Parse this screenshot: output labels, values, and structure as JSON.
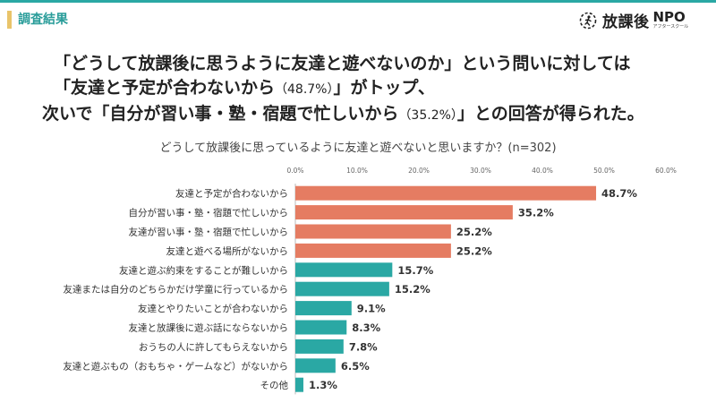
{
  "header": {
    "section_label": "調査結果",
    "logo_text": "放課後",
    "logo_npo": "NPO",
    "logo_sub": "アフタースクール"
  },
  "headline": {
    "line1": "「どうして放課後に思うように友達と遊べないのか」という問いに対しては",
    "line2_a": "「友達と予定が合わないから",
    "line2_b": "（48.7%）",
    "line2_c": "」がトップ、",
    "line3_a": "次いで「自分が習い事・塾・宿題で忙しいから",
    "line3_b": "（35.2%）",
    "line3_c": "」との回答が得られた。"
  },
  "colors": {
    "accent_teal": "#2aa8a4",
    "bar_orange": "#e57c62",
    "bar_teal": "#2aa8a4",
    "section_mark": "#e9c46a"
  },
  "chart_data": {
    "type": "bar",
    "orientation": "horizontal",
    "title": "どうして放課後に思っているように友達と遊べないと思いますか？(n=302)",
    "categories": [
      "友達と予定が合わないから",
      "自分が習い事・塾・宿題で忙しいから",
      "友達が習い事・塾・宿題で忙しいから",
      "友達と遊べる場所がないから",
      "友達と遊ぶ約束をすることが難しいから",
      "友達または自分のどちらかだけ学童に行っているから",
      "友達とやりたいことが合わないから",
      "友達と放課後に遊ぶ話にならないから",
      "おうちの人に許してもらえないから",
      "友達と遊ぶもの（おもちゃ・ゲームなど）がないから",
      "その他"
    ],
    "values": [
      48.7,
      35.2,
      25.2,
      25.2,
      15.7,
      15.2,
      9.1,
      8.3,
      7.8,
      6.5,
      1.3
    ],
    "value_labels": [
      "48.7%",
      "35.2%",
      "25.2%",
      "25.2%",
      "15.7%",
      "15.2%",
      "9.1%",
      "8.3%",
      "7.8%",
      "6.5%",
      "1.3%"
    ],
    "highlight_count": 4,
    "xlim": [
      0,
      60
    ],
    "xticks": [
      0,
      10,
      20,
      30,
      40,
      50,
      60
    ],
    "xtick_labels": [
      "0.0%",
      "10.0%",
      "20.0%",
      "30.0%",
      "40.0%",
      "50.0%",
      "60.0%"
    ],
    "axis_position": "top",
    "grid": false,
    "legend": "none"
  }
}
